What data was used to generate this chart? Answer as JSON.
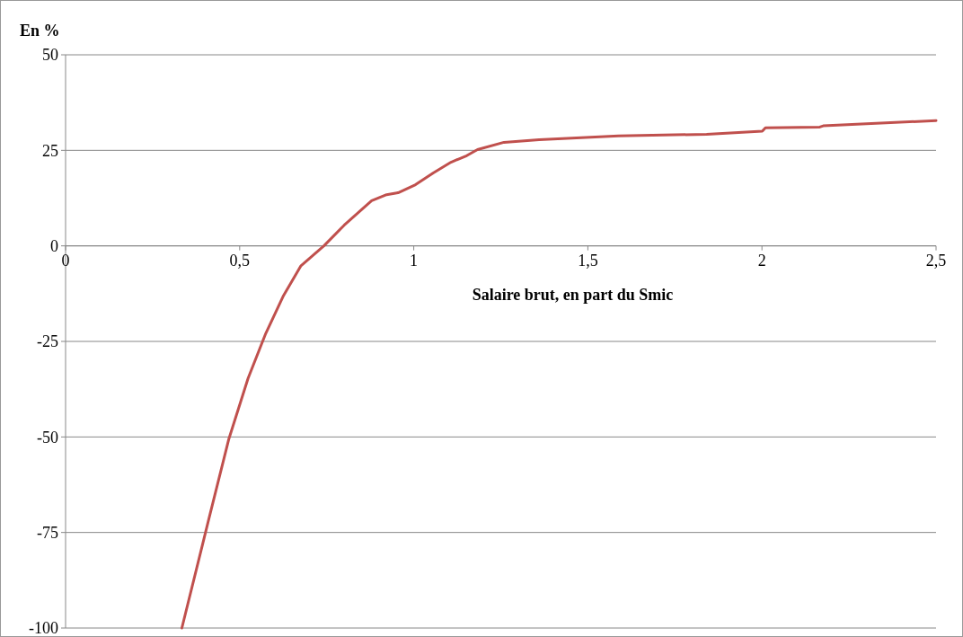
{
  "chart_data": {
    "type": "line",
    "ylabel": "En %",
    "xlabel": "Salaire brut, en part du Smic",
    "x": [
      0.334,
      0.393,
      0.41,
      0.469,
      0.524,
      0.575,
      0.626,
      0.676,
      0.742,
      0.8,
      0.879,
      0.922,
      0.955,
      1.005,
      1.056,
      1.107,
      1.152,
      1.183,
      1.259,
      1.36,
      1.588,
      1.841,
      2.001,
      2.01,
      2.166,
      2.176,
      2.5
    ],
    "series": [
      {
        "color": "#c0504d",
        "values": [
          -100,
          -78.3,
          -72,
          -50.5,
          -34.7,
          -22.9,
          -13,
          -5.2,
          0,
          5.4,
          11.8,
          13.4,
          13.9,
          16,
          19.1,
          21.9,
          23.6,
          25.2,
          27.1,
          27.8,
          28.8,
          29.2,
          30,
          30.9,
          31.1,
          31.4,
          32.8
        ]
      }
    ],
    "xlim": [
      0,
      2.5
    ],
    "ylim": [
      -100,
      50
    ],
    "xticks": [
      0,
      {
        "value": 0.5,
        "label": "0,5"
      },
      1,
      {
        "value": 1.5,
        "label": "1,5"
      },
      2,
      {
        "value": 2.5,
        "label": "2,5"
      }
    ],
    "yticks": [
      -100,
      -75,
      -50,
      -25,
      0,
      25,
      50
    ],
    "grid": "y",
    "marker": "none",
    "line_style": "solid"
  }
}
